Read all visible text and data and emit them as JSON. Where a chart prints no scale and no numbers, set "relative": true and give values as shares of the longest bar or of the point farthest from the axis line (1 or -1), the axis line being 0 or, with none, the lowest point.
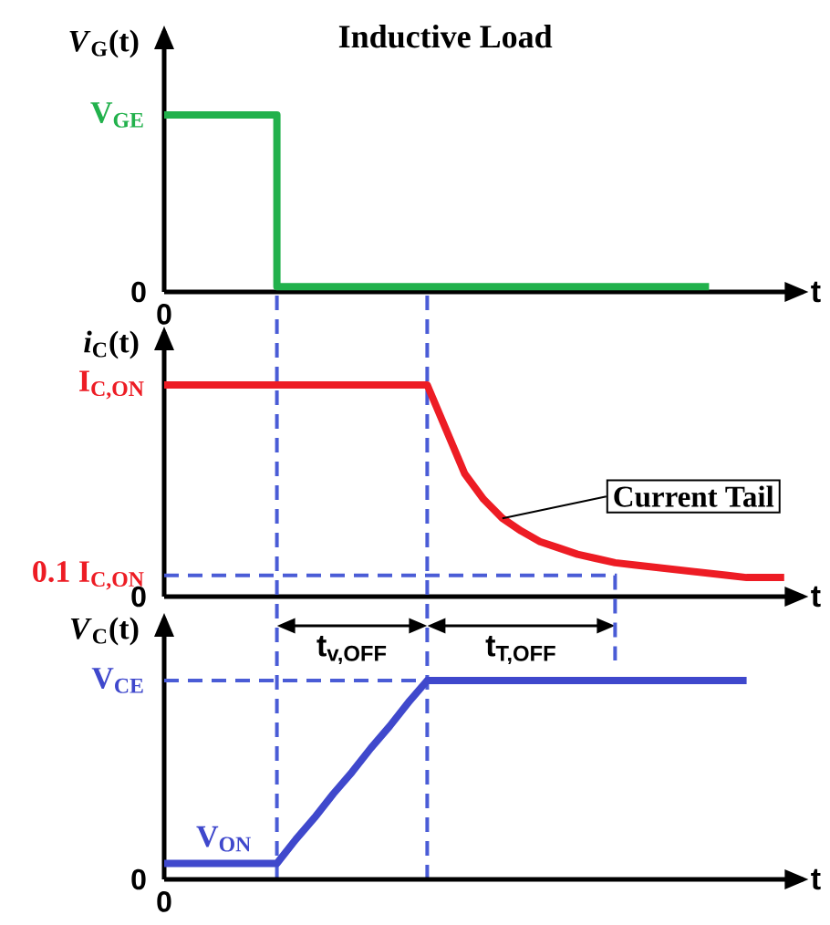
{
  "chart_data": [
    {
      "type": "step",
      "title": "Inductive Load",
      "ylabel": "*V*$_{G}$(t)",
      "xlabel": "t",
      "relative": true,
      "categories": [
        null,
        null,
        null,
        null,
        null,
        null,
        null,
        null,
        null,
        null,
        null,
        null,
        null,
        null,
        null,
        null,
        null,
        null,
        null,
        null,
        null,
        null,
        null,
        null,
        null,
        null,
        null,
        null,
        null,
        null,
        null,
        null,
        null,
        null
      ],
      "series": [
        {
          "color": "#22b14c",
          "values": [
            1,
            1,
            1,
            1,
            1,
            1,
            0.03,
            0.03,
            0.03,
            0.03,
            0.03,
            0.03,
            0.03,
            0.03,
            0.03,
            0.03,
            0.03,
            0.03,
            0.03,
            0.03,
            0.03,
            0.03,
            0.03,
            0.03,
            0.03,
            0.03,
            0.03,
            0.03,
            0.03,
            0.03,
            null,
            null,
            null,
            null
          ]
        }
      ],
      "annotations": [
        "V$_{GE}$",
        "0",
        "0"
      ]
    },
    {
      "type": "line",
      "ylabel": "*i*$_{C}$(t)",
      "xlabel": "t",
      "relative": true,
      "categories": [
        null,
        null,
        null,
        null,
        null,
        null,
        null,
        null,
        null,
        null,
        null,
        null,
        null,
        null,
        null,
        null,
        null,
        null,
        null,
        null,
        null,
        null,
        null,
        null,
        null,
        null,
        null,
        null,
        null,
        null,
        null,
        null,
        null,
        null
      ],
      "series": [
        {
          "color": "#ed1c24",
          "values": [
            1,
            1,
            1,
            1,
            1,
            1,
            1,
            1,
            1,
            1,
            1,
            1,
            1,
            1,
            1,
            0.79,
            0.58,
            0.46,
            0.37,
            0.31,
            0.26,
            0.23,
            0.2,
            0.18,
            0.16,
            0.15,
            0.14,
            0.13,
            0.12,
            0.11,
            0.1,
            0.09,
            0.09,
            0.09
          ]
        }
      ],
      "ref_lines": [
        {
          "axis": "y",
          "value": 0.1,
          "label": "0.1 I$_{C,ON}$",
          "color": "#4a5cd6",
          "line_style": "dashed"
        }
      ],
      "annotations": [
        "I$_{C,ON}$",
        "0",
        "Current Tail",
        "t$_{v,OFF}$",
        "t$_{T,OFF}$"
      ]
    },
    {
      "type": "line",
      "ylabel": "*V*$_{C}$(t)",
      "xlabel": "t",
      "relative": true,
      "categories": [
        null,
        null,
        null,
        null,
        null,
        null,
        null,
        null,
        null,
        null,
        null,
        null,
        null,
        null,
        null,
        null,
        null,
        null,
        null,
        null,
        null,
        null,
        null,
        null,
        null,
        null,
        null,
        null,
        null,
        null,
        null,
        null,
        null,
        null
      ],
      "series": [
        {
          "color": "#3f48cc",
          "values": [
            0.08,
            0.08,
            0.08,
            0.08,
            0.08,
            0.08,
            0.08,
            0.2,
            0.31,
            0.43,
            0.54,
            0.66,
            0.77,
            0.89,
            1,
            1,
            1,
            1,
            1,
            1,
            1,
            1,
            1,
            1,
            1,
            1,
            1,
            1,
            1,
            1,
            1,
            1,
            null,
            null
          ]
        }
      ],
      "ref_lines": [
        {
          "axis": "y",
          "value": 1,
          "label": "V$_{CE}$",
          "color": "#4a5cd6",
          "line_style": "dashed"
        }
      ],
      "annotations": [
        "V$_{ON}$",
        "0",
        "0"
      ]
    }
  ]
}
